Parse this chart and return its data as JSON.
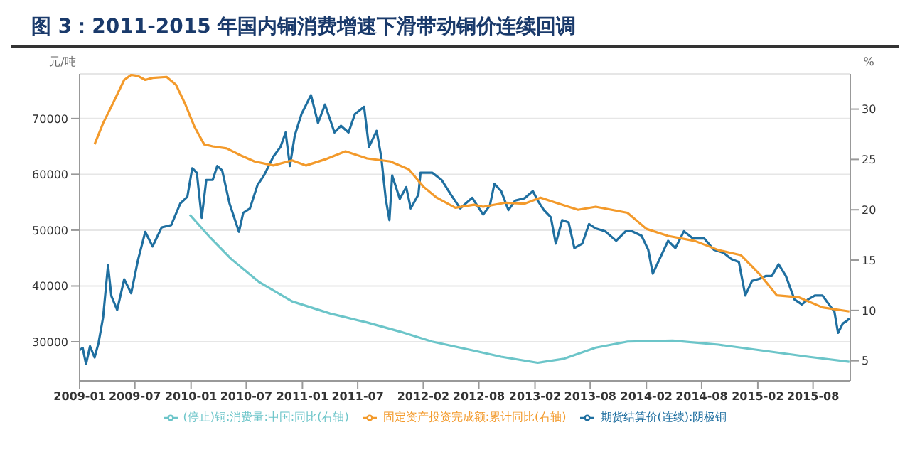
{
  "chart_data": {
    "type": "line",
    "title": "图 3：2011-2015 年国内铜消费增速下滑带动铜价连续回调",
    "ylabel": "元/吨",
    "y2label": "%",
    "xlim": [
      "2009-01-01",
      "2015-12-01"
    ],
    "xticks": [
      "2009-01",
      "2009-07",
      "2010-01",
      "2010-07",
      "2011-01",
      "2011-07",
      "2012-02",
      "2012-08",
      "2013-02",
      "2013-08",
      "2014-02",
      "2014-08",
      "2015-02",
      "2015-08"
    ],
    "ylim": [
      23000,
      78000
    ],
    "yticks": [
      30000,
      40000,
      50000,
      60000,
      70000
    ],
    "y2lim": [
      3,
      33.5
    ],
    "y2ticks": [
      5,
      10,
      15,
      20,
      25,
      30
    ],
    "grid": "y",
    "legend": "bottom",
    "series": [
      {
        "name": "期货结算价(连续):阴极铜",
        "color": "#1f6fa0",
        "x": [
          "2009-01-01",
          "2009-01-11",
          "2009-01-22",
          "2009-02-04",
          "2009-02-19",
          "2009-03-04",
          "2009-03-19",
          "2009-04-04",
          "2009-04-15",
          "2009-05-04",
          "2009-05-27",
          "2009-06-19",
          "2009-07-11",
          "2009-08-04",
          "2009-08-28",
          "2009-09-27",
          "2009-10-28",
          "2009-11-27",
          "2009-12-20",
          "2010-01-05",
          "2010-01-20",
          "2010-02-05",
          "2010-02-20",
          "2010-03-13",
          "2010-03-28",
          "2010-04-13",
          "2010-05-07",
          "2010-06-07",
          "2010-06-21",
          "2010-07-13",
          "2010-08-07",
          "2010-08-28",
          "2010-09-28",
          "2010-10-21",
          "2010-11-07",
          "2010-11-21",
          "2010-12-07",
          "2010-12-29",
          "2011-01-29",
          "2011-02-21",
          "2011-03-16",
          "2011-04-16",
          "2011-05-07",
          "2011-06-01",
          "2011-06-22",
          "2011-07-22",
          "2011-08-07",
          "2011-09-01",
          "2011-09-16",
          "2011-10-01",
          "2011-10-13",
          "2011-10-22",
          "2011-11-16",
          "2011-12-07",
          "2011-12-22",
          "2012-01-16",
          "2012-01-23",
          "2012-03-01",
          "2012-04-01",
          "2012-05-01",
          "2012-06-01",
          "2012-07-10",
          "2012-08-15",
          "2012-09-06",
          "2012-09-21",
          "2012-10-13",
          "2012-11-06",
          "2012-11-28",
          "2012-12-28",
          "2013-01-25",
          "2013-02-10",
          "2013-03-02",
          "2013-03-25",
          "2013-04-10",
          "2013-05-01",
          "2013-05-22",
          "2013-06-10",
          "2013-07-06",
          "2013-07-28",
          "2013-08-19",
          "2013-09-19",
          "2013-10-25",
          "2013-11-25",
          "2013-12-16",
          "2014-01-16",
          "2014-02-07",
          "2014-02-22",
          "2014-03-16",
          "2014-04-13",
          "2014-05-07",
          "2014-06-04",
          "2014-07-04",
          "2014-08-10",
          "2014-09-10",
          "2014-10-10",
          "2014-11-07",
          "2014-12-01",
          "2014-12-22",
          "2015-01-13",
          "2015-02-07",
          "2015-02-28",
          "2015-03-19",
          "2015-04-10",
          "2015-05-04",
          "2015-06-01",
          "2015-06-25",
          "2015-07-16",
          "2015-08-07",
          "2015-09-01",
          "2015-09-22",
          "2015-10-10",
          "2015-10-22",
          "2015-11-07",
          "2015-11-19",
          "2015-11-28"
        ],
        "values": [
          28500,
          28900,
          26000,
          29200,
          27200,
          29800,
          34400,
          43700,
          38200,
          35700,
          41200,
          38700,
          44600,
          49700,
          47100,
          50500,
          50900,
          54800,
          56000,
          61100,
          60300,
          52200,
          59000,
          59000,
          61500,
          60700,
          54800,
          49700,
          53100,
          53900,
          58100,
          59800,
          63200,
          64900,
          67500,
          61500,
          67000,
          70800,
          74200,
          69200,
          72500,
          67500,
          68700,
          67500,
          70800,
          72100,
          64900,
          67800,
          63200,
          55600,
          51800,
          59800,
          55600,
          57700,
          53900,
          56400,
          60300,
          60300,
          59000,
          56400,
          53900,
          55800,
          52800,
          54400,
          58300,
          57000,
          53600,
          55300,
          55700,
          57000,
          55300,
          53600,
          52300,
          47600,
          51800,
          51400,
          46800,
          47600,
          51100,
          50300,
          49800,
          48100,
          49800,
          49800,
          49000,
          46500,
          42200,
          44800,
          48100,
          46800,
          49800,
          48500,
          48500,
          46500,
          46000,
          44800,
          44300,
          38300,
          40900,
          41300,
          41800,
          41800,
          43900,
          41800,
          37600,
          36700,
          37600,
          38300,
          38300,
          36700,
          35400,
          31600,
          33300,
          33700,
          34200
        ]
      },
      {
        "name": "固定资产投资完成额:累计同比(右轴)",
        "color": "#f39a2b",
        "axis": "y2",
        "x": [
          "2009-02-19",
          "2009-03-19",
          "2009-04-19",
          "2009-05-27",
          "2009-06-19",
          "2009-07-11",
          "2009-08-04",
          "2009-08-28",
          "2009-10-13",
          "2009-11-13",
          "2009-12-13",
          "2010-01-13",
          "2010-02-13",
          "2010-03-13",
          "2010-04-28",
          "2010-06-13",
          "2010-07-28",
          "2010-09-28",
          "2010-11-28",
          "2011-01-13",
          "2011-03-16",
          "2011-05-22",
          "2011-08-01",
          "2011-10-16",
          "2011-12-16",
          "2012-02-01",
          "2012-03-16",
          "2012-05-16",
          "2012-07-16",
          "2012-08-15",
          "2012-10-28",
          "2012-12-28",
          "2013-02-19",
          "2013-04-10",
          "2013-06-22",
          "2013-08-19",
          "2013-12-01",
          "2014-02-01",
          "2014-04-13",
          "2014-07-10",
          "2014-09-25",
          "2014-12-07",
          "2015-02-07",
          "2015-04-04",
          "2015-06-16",
          "2015-09-01",
          "2015-11-28"
        ],
        "values": [
          26.5,
          28.6,
          30.5,
          32.9,
          33.4,
          33.3,
          32.9,
          33.1,
          33.2,
          32.4,
          30.5,
          28.2,
          26.5,
          26.3,
          26.1,
          25.4,
          24.8,
          24.4,
          24.9,
          24.4,
          25.0,
          25.8,
          25.1,
          24.8,
          24.0,
          22.3,
          21.2,
          20.2,
          20.5,
          20.3,
          20.7,
          20.6,
          21.2,
          20.7,
          20.0,
          20.3,
          19.7,
          18.1,
          17.4,
          16.9,
          16.0,
          15.5,
          13.6,
          11.5,
          11.3,
          10.3,
          9.9
        ]
      },
      {
        "name": "(停止)铜:消费量:中国:同比(右轴)",
        "color": "#6cc5c9",
        "axis": "y2",
        "x": [
          "2009-12-28",
          "2010-02-28",
          "2010-05-13",
          "2010-08-13",
          "2010-11-28",
          "2011-04-01",
          "2011-08-01",
          "2011-11-16",
          "2012-03-01",
          "2012-07-16",
          "2012-10-13",
          "2013-02-10",
          "2013-05-07",
          "2013-08-19",
          "2013-12-01",
          "2014-04-28",
          "2014-09-25",
          "2015-02-19",
          "2015-07-16",
          "2015-11-28"
        ],
        "values": [
          19.5,
          17.4,
          15.1,
          12.8,
          10.9,
          9.7,
          8.8,
          7.9,
          6.9,
          6.0,
          5.4,
          4.8,
          5.2,
          6.3,
          6.9,
          7.0,
          6.6,
          6.0,
          5.4,
          4.9
        ]
      }
    ]
  }
}
